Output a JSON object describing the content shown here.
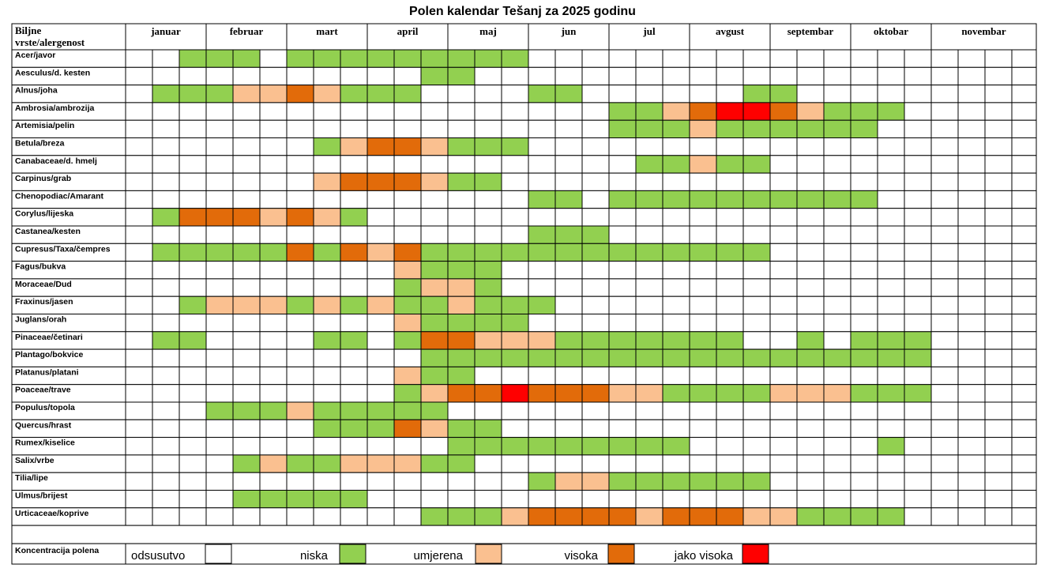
{
  "title": "Polen kalendar Tešanj za 2025 godinu",
  "header": {
    "line1": "Biljne",
    "line2": "vrste/alergenost"
  },
  "colors": {
    "0": "#ffffff",
    "1": "#92d050",
    "2": "#fac090",
    "3": "#e26b0a",
    "4": "#ff0000"
  },
  "chart_data": {
    "type": "heatmap",
    "title": "Polen kalendar Tešanj za 2025 godinu",
    "months": [
      "januar",
      "februar",
      "mart",
      "april",
      "maj",
      "jun",
      "jul",
      "avgust",
      "septembar",
      "oktobar",
      "novembar"
    ],
    "periods_per_month": 3,
    "scale": {
      "0": "odsusutvo",
      "1": "niska",
      "2": "umjerena",
      "3": "visoka",
      "4": "jako visoka"
    },
    "rows": [
      {
        "name": "Acer/javor",
        "values": [
          0,
          0,
          1,
          1,
          1,
          0,
          1,
          1,
          1,
          1,
          1,
          1,
          1,
          1,
          1,
          0,
          0,
          0,
          0,
          0,
          0,
          0,
          0,
          0,
          0,
          0,
          0,
          0,
          0,
          0,
          0,
          0,
          0
        ]
      },
      {
        "name": "Aesculus/d. kesten",
        "values": [
          0,
          0,
          0,
          0,
          0,
          0,
          0,
          0,
          0,
          0,
          0,
          1,
          1,
          0,
          0,
          0,
          0,
          0,
          0,
          0,
          0,
          0,
          0,
          0,
          0,
          0,
          0,
          0,
          0,
          0,
          0,
          0,
          0
        ]
      },
      {
        "name": "Alnus/joha",
        "values": [
          0,
          1,
          1,
          1,
          2,
          2,
          3,
          2,
          1,
          1,
          1,
          0,
          0,
          0,
          0,
          1,
          1,
          0,
          0,
          0,
          0,
          0,
          0,
          1,
          1,
          0,
          0,
          0,
          0,
          0,
          0,
          0,
          0
        ]
      },
      {
        "name": "Ambrosia/ambrozija",
        "values": [
          0,
          0,
          0,
          0,
          0,
          0,
          0,
          0,
          0,
          0,
          0,
          0,
          0,
          0,
          0,
          0,
          0,
          0,
          1,
          1,
          2,
          3,
          4,
          4,
          3,
          2,
          1,
          1,
          1,
          0,
          0,
          0,
          0
        ]
      },
      {
        "name": "Artemisia/pelin",
        "values": [
          0,
          0,
          0,
          0,
          0,
          0,
          0,
          0,
          0,
          0,
          0,
          0,
          0,
          0,
          0,
          0,
          0,
          0,
          1,
          1,
          1,
          2,
          1,
          1,
          1,
          1,
          1,
          1,
          0,
          0,
          0,
          0,
          0
        ]
      },
      {
        "name": "Betula/breza",
        "values": [
          0,
          0,
          0,
          0,
          0,
          0,
          0,
          1,
          2,
          3,
          3,
          2,
          1,
          1,
          1,
          0,
          0,
          0,
          0,
          0,
          0,
          0,
          0,
          0,
          0,
          0,
          0,
          0,
          0,
          0,
          0,
          0,
          0
        ]
      },
      {
        "name": "Canabaceae/d. hmelj",
        "values": [
          0,
          0,
          0,
          0,
          0,
          0,
          0,
          0,
          0,
          0,
          0,
          0,
          0,
          0,
          0,
          0,
          0,
          0,
          0,
          1,
          1,
          2,
          1,
          1,
          0,
          0,
          0,
          0,
          0,
          0,
          0,
          0,
          0
        ]
      },
      {
        "name": "Carpinus/grab",
        "values": [
          0,
          0,
          0,
          0,
          0,
          0,
          0,
          2,
          3,
          3,
          3,
          2,
          1,
          1,
          0,
          0,
          0,
          0,
          0,
          0,
          0,
          0,
          0,
          0,
          0,
          0,
          0,
          0,
          0,
          0,
          0,
          0,
          0
        ]
      },
      {
        "name": "Chenopodiac/Amarant",
        "values": [
          0,
          0,
          0,
          0,
          0,
          0,
          0,
          0,
          0,
          0,
          0,
          0,
          0,
          0,
          0,
          1,
          1,
          0,
          1,
          1,
          1,
          1,
          1,
          1,
          1,
          1,
          1,
          1,
          0,
          0,
          0,
          0,
          0
        ]
      },
      {
        "name": "Corylus/lijeska",
        "values": [
          0,
          1,
          3,
          3,
          3,
          2,
          3,
          2,
          1,
          0,
          0,
          0,
          0,
          0,
          0,
          0,
          0,
          0,
          0,
          0,
          0,
          0,
          0,
          0,
          0,
          0,
          0,
          0,
          0,
          0,
          0,
          0,
          0
        ]
      },
      {
        "name": "Castanea/kesten",
        "values": [
          0,
          0,
          0,
          0,
          0,
          0,
          0,
          0,
          0,
          0,
          0,
          0,
          0,
          0,
          0,
          1,
          1,
          1,
          0,
          0,
          0,
          0,
          0,
          0,
          0,
          0,
          0,
          0,
          0,
          0,
          0,
          0,
          0
        ]
      },
      {
        "name": "Cupresus/Taxa/čempres",
        "values": [
          0,
          1,
          1,
          1,
          1,
          1,
          3,
          1,
          3,
          2,
          3,
          1,
          1,
          1,
          1,
          1,
          1,
          1,
          1,
          1,
          1,
          1,
          1,
          1,
          0,
          0,
          0,
          0,
          0,
          0,
          0,
          0,
          0
        ]
      },
      {
        "name": "Fagus/bukva",
        "values": [
          0,
          0,
          0,
          0,
          0,
          0,
          0,
          0,
          0,
          0,
          2,
          1,
          1,
          1,
          0,
          0,
          0,
          0,
          0,
          0,
          0,
          0,
          0,
          0,
          0,
          0,
          0,
          0,
          0,
          0,
          0,
          0,
          0
        ]
      },
      {
        "name": "Moraceae/Dud",
        "values": [
          0,
          0,
          0,
          0,
          0,
          0,
          0,
          0,
          0,
          0,
          1,
          2,
          2,
          1,
          0,
          0,
          0,
          0,
          0,
          0,
          0,
          0,
          0,
          0,
          0,
          0,
          0,
          0,
          0,
          0,
          0,
          0,
          0
        ]
      },
      {
        "name": "Fraxinus/jasen",
        "values": [
          0,
          0,
          1,
          2,
          2,
          2,
          1,
          2,
          1,
          2,
          1,
          1,
          2,
          1,
          1,
          1,
          0,
          0,
          0,
          0,
          0,
          0,
          0,
          0,
          0,
          0,
          0,
          0,
          0,
          0,
          0,
          0,
          0
        ]
      },
      {
        "name": "Juglans/orah",
        "values": [
          0,
          0,
          0,
          0,
          0,
          0,
          0,
          0,
          0,
          0,
          2,
          1,
          1,
          1,
          1,
          0,
          0,
          0,
          0,
          0,
          0,
          0,
          0,
          0,
          0,
          0,
          0,
          0,
          0,
          0,
          0,
          0,
          0
        ]
      },
      {
        "name": "Pinaceae/četinari",
        "values": [
          0,
          1,
          1,
          0,
          0,
          0,
          0,
          1,
          1,
          0,
          1,
          3,
          3,
          2,
          2,
          2,
          1,
          1,
          1,
          1,
          1,
          1,
          1,
          0,
          0,
          1,
          0,
          1,
          1,
          1,
          0,
          0,
          0
        ]
      },
      {
        "name": "Plantago/bokvice",
        "values": [
          0,
          0,
          0,
          0,
          0,
          0,
          0,
          0,
          0,
          0,
          0,
          1,
          1,
          1,
          1,
          1,
          1,
          1,
          1,
          1,
          1,
          1,
          1,
          1,
          1,
          1,
          1,
          1,
          1,
          1,
          0,
          0,
          0
        ]
      },
      {
        "name": "Platanus/platani",
        "values": [
          0,
          0,
          0,
          0,
          0,
          0,
          0,
          0,
          0,
          0,
          2,
          1,
          1,
          0,
          0,
          0,
          0,
          0,
          0,
          0,
          0,
          0,
          0,
          0,
          0,
          0,
          0,
          0,
          0,
          0,
          0,
          0,
          0
        ]
      },
      {
        "name": "Poaceae/trave",
        "values": [
          0,
          0,
          0,
          0,
          0,
          0,
          0,
          0,
          0,
          0,
          1,
          2,
          3,
          3,
          4,
          3,
          3,
          3,
          2,
          2,
          1,
          1,
          1,
          1,
          2,
          2,
          2,
          1,
          1,
          1,
          0,
          0,
          0
        ]
      },
      {
        "name": "Populus/topola",
        "values": [
          0,
          0,
          0,
          1,
          1,
          1,
          2,
          1,
          1,
          1,
          1,
          1,
          0,
          0,
          0,
          0,
          0,
          0,
          0,
          0,
          0,
          0,
          0,
          0,
          0,
          0,
          0,
          0,
          0,
          0,
          0,
          0,
          0
        ]
      },
      {
        "name": "Quercus/hrast",
        "values": [
          0,
          0,
          0,
          0,
          0,
          0,
          0,
          1,
          1,
          1,
          3,
          2,
          1,
          1,
          0,
          0,
          0,
          0,
          0,
          0,
          0,
          0,
          0,
          0,
          0,
          0,
          0,
          0,
          0,
          0,
          0,
          0,
          0
        ]
      },
      {
        "name": "Rumex/kiselice",
        "values": [
          0,
          0,
          0,
          0,
          0,
          0,
          0,
          0,
          0,
          0,
          0,
          0,
          1,
          1,
          1,
          1,
          1,
          1,
          1,
          1,
          1,
          0,
          0,
          0,
          0,
          0,
          0,
          0,
          1,
          0,
          0,
          0,
          0
        ]
      },
      {
        "name": "Salix/vrbe",
        "values": [
          0,
          0,
          0,
          0,
          1,
          2,
          1,
          1,
          2,
          2,
          2,
          1,
          1,
          0,
          0,
          0,
          0,
          0,
          0,
          0,
          0,
          0,
          0,
          0,
          0,
          0,
          0,
          0,
          0,
          0,
          0,
          0,
          0
        ]
      },
      {
        "name": "Tilia/lipe",
        "values": [
          0,
          0,
          0,
          0,
          0,
          0,
          0,
          0,
          0,
          0,
          0,
          0,
          0,
          0,
          0,
          1,
          2,
          2,
          1,
          1,
          1,
          1,
          1,
          1,
          0,
          0,
          0,
          0,
          0,
          0,
          0,
          0,
          0
        ]
      },
      {
        "name": "Ulmus/brijest",
        "values": [
          0,
          0,
          0,
          0,
          1,
          1,
          1,
          1,
          1,
          0,
          0,
          0,
          0,
          0,
          0,
          0,
          0,
          0,
          0,
          0,
          0,
          0,
          0,
          0,
          0,
          0,
          0,
          0,
          0,
          0,
          0,
          0,
          0
        ]
      },
      {
        "name": "Urticaceae/koprive",
        "values": [
          0,
          0,
          0,
          0,
          0,
          0,
          0,
          0,
          0,
          0,
          0,
          1,
          1,
          1,
          2,
          3,
          3,
          3,
          3,
          2,
          3,
          3,
          3,
          2,
          2,
          1,
          1,
          1,
          1,
          0,
          0,
          0,
          0
        ]
      }
    ]
  },
  "legend": {
    "label": "Koncentracija polena",
    "items": [
      {
        "label": "odsusutvo",
        "level": 0
      },
      {
        "label": "niska",
        "level": 1
      },
      {
        "label": "umjerena",
        "level": 2
      },
      {
        "label": "visoka",
        "level": 3
      },
      {
        "label": "jako visoka",
        "level": 4
      }
    ]
  }
}
